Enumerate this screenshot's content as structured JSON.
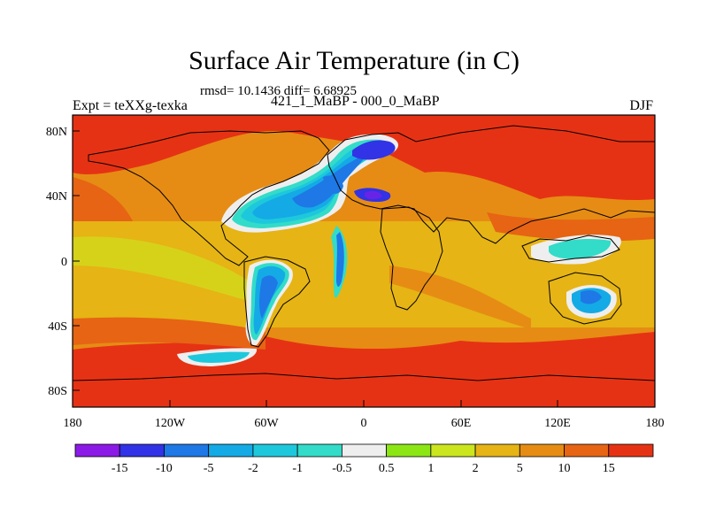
{
  "title": "Surface Air Temperature (in C)",
  "subtitle": "rmsd= 10.1436 diff= 6.68925",
  "left_label": "Expt = teXXg-texka",
  "center_label": "421_1_MaBP - 000_0_MaBP",
  "right_label": "DJF",
  "x_ticks": [
    "180",
    "120W",
    "60W",
    "0",
    "60E",
    "120E",
    "180"
  ],
  "y_ticks": [
    "80N",
    "40N",
    "0",
    "40S",
    "80S"
  ],
  "colorbar": {
    "colors": [
      "#8c1ae6",
      "#3232e6",
      "#1e78e6",
      "#14aae6",
      "#1ec8dc",
      "#32dcc8",
      "#eeeeee",
      "#8ce614",
      "#cce61e",
      "#e6b414",
      "#e68c14",
      "#e66414",
      "#e63214"
    ],
    "labels": [
      "-15",
      "-10",
      "-5",
      "-2",
      "-1",
      "-0.5",
      "0.5",
      "1",
      "2",
      "5",
      "10",
      "15"
    ]
  }
}
